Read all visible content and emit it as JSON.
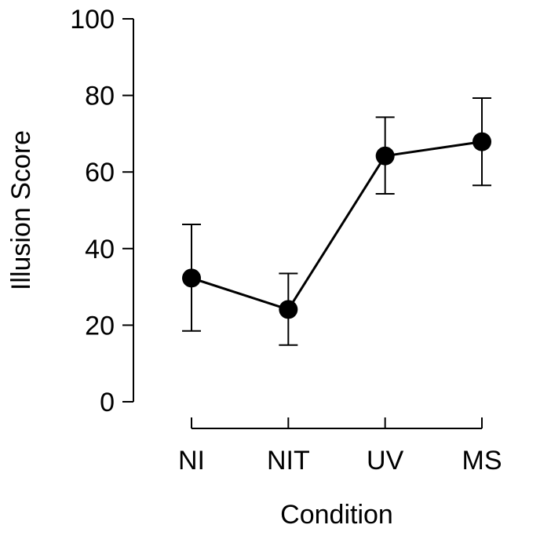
{
  "chart_data": {
    "type": "line",
    "title": "",
    "xlabel": "Condition",
    "ylabel": "Illusion Score",
    "categories": [
      "NI",
      "NIT",
      "UV",
      "MS"
    ],
    "values": [
      32.3,
      24.1,
      64.2,
      67.9
    ],
    "error_low": [
      18.5,
      14.8,
      54.3,
      56.5
    ],
    "error_high": [
      46.3,
      33.5,
      74.3,
      79.3
    ],
    "ylim": [
      0,
      100
    ],
    "yticks": [
      0,
      20,
      40,
      60,
      80,
      100
    ],
    "grid": false,
    "legend": "none",
    "colors": {
      "line": "#000000",
      "marker": "#000000",
      "axis": "#000000"
    }
  }
}
